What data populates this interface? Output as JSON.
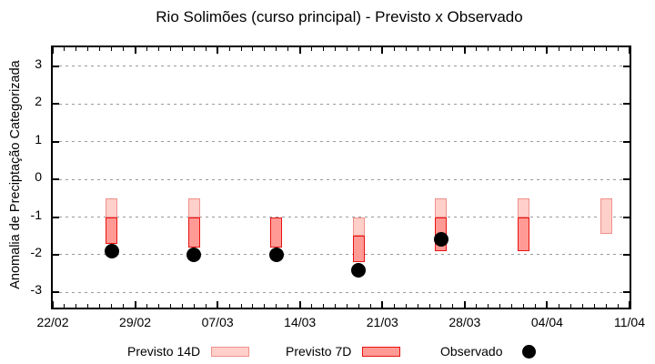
{
  "chart_data": {
    "type": "bar",
    "title": "Rio Solimões (curso principal) - Previsto x Observado",
    "xlabel": "",
    "ylabel": "Anomalia de Preciptação Categorizada",
    "grid": true,
    "legend_position": "bottom",
    "y_axis": {
      "ticks": [
        3,
        2,
        1,
        0,
        -1,
        -2,
        -3
      ],
      "lim": [
        -3.4,
        3.5
      ]
    },
    "x_axis": {
      "tick_labels": [
        "22/02",
        "29/02",
        "07/03",
        "14/03",
        "21/03",
        "28/03",
        "04/04",
        "11/04"
      ],
      "tick_days": [
        0,
        7,
        14,
        21,
        28,
        35,
        42,
        49
      ],
      "total_days": 49,
      "minor_tick_every_days": 1
    },
    "series": [
      {
        "name": "Previsto 14D",
        "render": "range-bar",
        "fill": "#ffcfca",
        "border": "#ef918b",
        "points": [
          {
            "date": "27/02",
            "day": 5,
            "from": -0.5,
            "to": -1.0
          },
          {
            "date": "05/03",
            "day": 12,
            "from": -0.5,
            "to": -1.0
          },
          {
            "date": "19/03",
            "day": 26,
            "from": -1.0,
            "to": -1.5
          },
          {
            "date": "26/03",
            "day": 33,
            "from": -0.5,
            "to": -1.0
          },
          {
            "date": "02/04",
            "day": 40,
            "from": -0.5,
            "to": -1.0
          },
          {
            "date": "09/04",
            "day": 47,
            "from": -0.5,
            "to": -1.45
          }
        ]
      },
      {
        "name": "Previsto 7D",
        "render": "range-bar",
        "fill": "#ff9a94",
        "border": "#e81313",
        "points": [
          {
            "date": "27/02",
            "day": 5,
            "from": -1.0,
            "to": -1.7
          },
          {
            "date": "05/03",
            "day": 12,
            "from": -1.0,
            "to": -1.8
          },
          {
            "date": "12/03",
            "day": 19,
            "from": -1.0,
            "to": -1.8
          },
          {
            "date": "19/03",
            "day": 26,
            "from": -1.5,
            "to": -2.2
          },
          {
            "date": "26/03",
            "day": 33,
            "from": -1.0,
            "to": -1.9
          },
          {
            "date": "02/04",
            "day": 40,
            "from": -1.0,
            "to": -1.9
          }
        ]
      },
      {
        "name": "Observado",
        "render": "scatter",
        "color": "#000000",
        "points": [
          {
            "date": "27/02",
            "day": 5,
            "value": -1.9
          },
          {
            "date": "05/03",
            "day": 12,
            "value": -2.0
          },
          {
            "date": "12/03",
            "day": 19,
            "value": -2.0
          },
          {
            "date": "19/03",
            "day": 26,
            "value": -2.4
          },
          {
            "date": "26/03",
            "day": 33,
            "value": -1.6
          }
        ]
      }
    ],
    "colors": {
      "grid": "#9a9a9a",
      "axis": "#000000",
      "background": "#ffffff"
    }
  }
}
